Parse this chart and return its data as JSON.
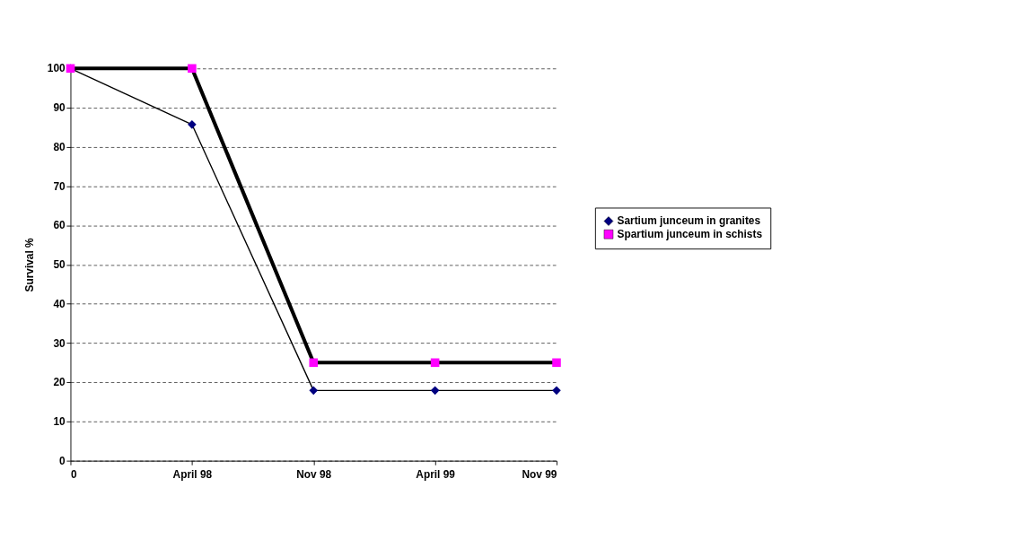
{
  "chart_data": {
    "type": "line",
    "ylabel": "Survival %",
    "categories": [
      "0",
      "April 98",
      "Nov 98",
      "April 99",
      "Nov 99"
    ],
    "series": [
      {
        "name": "Sartium junceum in granites",
        "color": "#000080",
        "marker": "diamond",
        "values": [
          100,
          85.7,
          17.9,
          17.9,
          17.9
        ]
      },
      {
        "name": "Spartium junceum in schists",
        "color": "#ff00ff",
        "marker": "square",
        "values": [
          100,
          100,
          25,
          25,
          25
        ]
      }
    ],
    "ylim": [
      0,
      100
    ],
    "yticks": [
      0,
      10,
      20,
      30,
      40,
      50,
      60,
      70,
      80,
      90,
      100
    ],
    "grid": "y",
    "legend": "right",
    "line_style": "solid"
  }
}
